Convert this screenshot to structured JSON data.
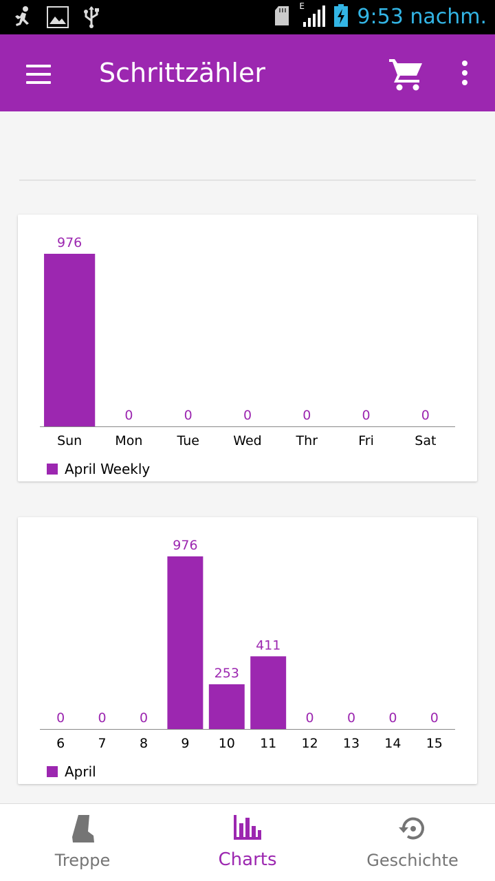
{
  "status_bar": {
    "icons": [
      "runner-icon",
      "image-icon",
      "usb-icon",
      "sd-card-icon",
      "signal-icon",
      "battery-charging-icon"
    ],
    "network_type": "E",
    "time": "9:53 nachm."
  },
  "app_bar": {
    "title": "Schrittzähler",
    "menu_icon": "hamburger-menu-icon",
    "cart_icon": "shopping-cart-icon",
    "more_icon": "more-vert-icon"
  },
  "colors": {
    "accent": "#9c27b0",
    "status_time": "#33b5e5",
    "nav_inactive": "#757575"
  },
  "chart_data": [
    {
      "type": "bar",
      "categories": [
        "Sun",
        "Mon",
        "Tue",
        "Wed",
        "Thr",
        "Fri",
        "Sat"
      ],
      "series": [
        {
          "name": "April Weekly",
          "values": [
            976,
            0,
            0,
            0,
            0,
            0,
            0
          ]
        }
      ],
      "title": "",
      "xlabel": "",
      "ylabel": "",
      "ylim": [
        0,
        976
      ],
      "legend": "bottom-left",
      "grid": false
    },
    {
      "type": "bar",
      "categories": [
        "6",
        "7",
        "8",
        "9",
        "10",
        "11",
        "12",
        "13",
        "14",
        "15"
      ],
      "series": [
        {
          "name": "April",
          "values": [
            0,
            0,
            0,
            976,
            253,
            411,
            0,
            0,
            0,
            0
          ]
        }
      ],
      "title": "",
      "xlabel": "",
      "ylabel": "",
      "ylim": [
        0,
        976
      ],
      "legend": "bottom-left",
      "grid": false
    }
  ],
  "bottom_nav": {
    "items": [
      {
        "label": "Treppe",
        "icon": "boot-icon",
        "active": false
      },
      {
        "label": "Charts",
        "icon": "bar-chart-icon",
        "active": true
      },
      {
        "label": "Geschichte",
        "icon": "history-icon",
        "active": false
      }
    ]
  }
}
